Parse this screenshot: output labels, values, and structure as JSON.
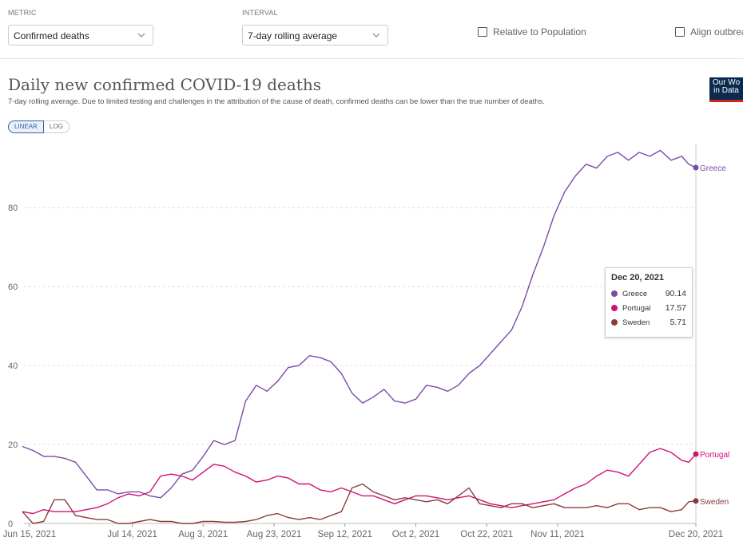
{
  "controls": {
    "metric": {
      "label": "METRIC",
      "value": "Confirmed deaths"
    },
    "interval": {
      "label": "INTERVAL",
      "value": "7-day rolling average"
    },
    "relative_label": "Relative to Population",
    "align_label": "Align outbrea"
  },
  "logo": {
    "line1": "Our Wo",
    "line2": "in Data"
  },
  "toggle": {
    "linear": "LINEAR",
    "log": "LOG"
  },
  "colors": {
    "greece": "#7b4aa5",
    "portugal": "#d20f74",
    "sweden": "#8a3b38",
    "grid": "#dddddd",
    "axis_text": "#666666"
  },
  "tooltip": {
    "date": "Dec 20, 2021",
    "rows": [
      {
        "name": "Greece",
        "value": "90.14",
        "color": "#7b4aa5"
      },
      {
        "name": "Portugal",
        "value": "17.57",
        "color": "#d20f74"
      },
      {
        "name": "Sweden",
        "value": "5.71",
        "color": "#8a3b38"
      }
    ]
  },
  "chart_data": {
    "type": "line",
    "title": "Daily new confirmed COVID-19 deaths",
    "subtitle": "7-day rolling average. Due to limited testing and challenges in the attribution of the cause of death, confirmed deaths can be lower than the true number of deaths.",
    "xlabel": "",
    "ylabel": "",
    "ylim": [
      0,
      95
    ],
    "xlim_days": [
      0,
      196
    ],
    "yticks": [
      0,
      20,
      40,
      60,
      80
    ],
    "x_ticks": [
      {
        "day": 2,
        "label": "Jun 15, 2021"
      },
      {
        "day": 31,
        "label": "Jul 14, 2021"
      },
      {
        "day": 51,
        "label": "Aug 3, 2021"
      },
      {
        "day": 71,
        "label": "Aug 23, 2021"
      },
      {
        "day": 91,
        "label": "Sep 12, 2021"
      },
      {
        "day": 111,
        "label": "Oct 2, 2021"
      },
      {
        "day": 131,
        "label": "Oct 22, 2021"
      },
      {
        "day": 151,
        "label": "Nov 11, 2021"
      },
      {
        "day": 190,
        "label": "Dec 20, 2021"
      }
    ],
    "series": [
      {
        "name": "Greece",
        "color": "#7b4aa5",
        "days": [
          0,
          3,
          6,
          9,
          12,
          15,
          18,
          21,
          24,
          27,
          30,
          33,
          36,
          39,
          42,
          45,
          48,
          51,
          54,
          57,
          60,
          63,
          66,
          69,
          72,
          75,
          78,
          81,
          84,
          87,
          90,
          93,
          96,
          99,
          102,
          105,
          108,
          111,
          114,
          117,
          120,
          123,
          126,
          129,
          132,
          135,
          138,
          141,
          144,
          147,
          150,
          153,
          156,
          159,
          162,
          165,
          168,
          171,
          174,
          177,
          180,
          183,
          186,
          188,
          190
        ],
        "values": [
          19.5,
          18.5,
          17,
          17,
          16.5,
          15.5,
          12,
          8.5,
          8.5,
          7.5,
          8,
          8,
          7,
          6.5,
          9,
          12.5,
          13.5,
          17,
          21,
          20,
          21,
          31,
          35,
          33.5,
          36,
          39.5,
          40,
          42.5,
          42,
          41,
          38,
          33,
          30.5,
          32,
          34,
          31,
          30.5,
          31.5,
          35,
          34.5,
          33.5,
          35,
          38,
          40,
          43,
          46,
          49,
          55,
          63,
          70,
          78,
          84,
          88,
          91,
          90,
          93,
          94,
          92,
          94,
          93,
          94.5,
          92,
          93,
          91,
          90.14
        ]
      },
      {
        "name": "Portugal",
        "color": "#d20f74",
        "days": [
          0,
          3,
          6,
          9,
          12,
          15,
          18,
          21,
          24,
          27,
          30,
          33,
          36,
          39,
          42,
          45,
          48,
          51,
          54,
          57,
          60,
          63,
          66,
          69,
          72,
          75,
          78,
          81,
          84,
          87,
          90,
          93,
          96,
          99,
          102,
          105,
          108,
          111,
          114,
          117,
          120,
          123,
          126,
          129,
          132,
          135,
          138,
          141,
          144,
          147,
          150,
          153,
          156,
          159,
          162,
          165,
          168,
          171,
          174,
          177,
          180,
          183,
          186,
          188,
          190
        ],
        "values": [
          3,
          2.5,
          3.5,
          3,
          3,
          3,
          3.5,
          4,
          5,
          6.5,
          7.5,
          7,
          8,
          12,
          12.5,
          12,
          11,
          13,
          15,
          14.5,
          13,
          12,
          10.5,
          11,
          12,
          11.5,
          10,
          10,
          8.5,
          8,
          9,
          8,
          7,
          7,
          6,
          5,
          6,
          7,
          7,
          6.5,
          6,
          6.5,
          7,
          6,
          5,
          4.5,
          4,
          4.5,
          5,
          5.5,
          6,
          7.5,
          9,
          10,
          12,
          13.5,
          13,
          12,
          15,
          18,
          19,
          18,
          16,
          15.5,
          17.57
        ]
      },
      {
        "name": "Sweden",
        "color": "#8a3b38",
        "days": [
          0,
          3,
          6,
          9,
          12,
          15,
          18,
          21,
          24,
          27,
          30,
          33,
          36,
          39,
          42,
          45,
          48,
          51,
          54,
          57,
          60,
          63,
          66,
          69,
          72,
          75,
          78,
          81,
          84,
          87,
          90,
          93,
          96,
          99,
          102,
          105,
          108,
          111,
          114,
          117,
          120,
          123,
          126,
          129,
          132,
          135,
          138,
          141,
          144,
          147,
          150,
          153,
          156,
          159,
          162,
          165,
          168,
          171,
          174,
          177,
          180,
          183,
          186,
          188,
          190
        ],
        "values": [
          3,
          0,
          0.5,
          6,
          6,
          2,
          1.5,
          1,
          1,
          0,
          0,
          0.5,
          1,
          0.5,
          0.5,
          0,
          0,
          0.5,
          0.5,
          0.3,
          0.3,
          0.5,
          1,
          2,
          2.5,
          1.5,
          1,
          1.5,
          1,
          2,
          3,
          9,
          10,
          8,
          7,
          6,
          6.5,
          6,
          5.5,
          6,
          5,
          7,
          9,
          5,
          4.5,
          4,
          5,
          5,
          4,
          4.5,
          5,
          4,
          4,
          4,
          4.5,
          4,
          5,
          5,
          3.5,
          4,
          4,
          3,
          3.5,
          5.5,
          5.71
        ]
      }
    ]
  }
}
